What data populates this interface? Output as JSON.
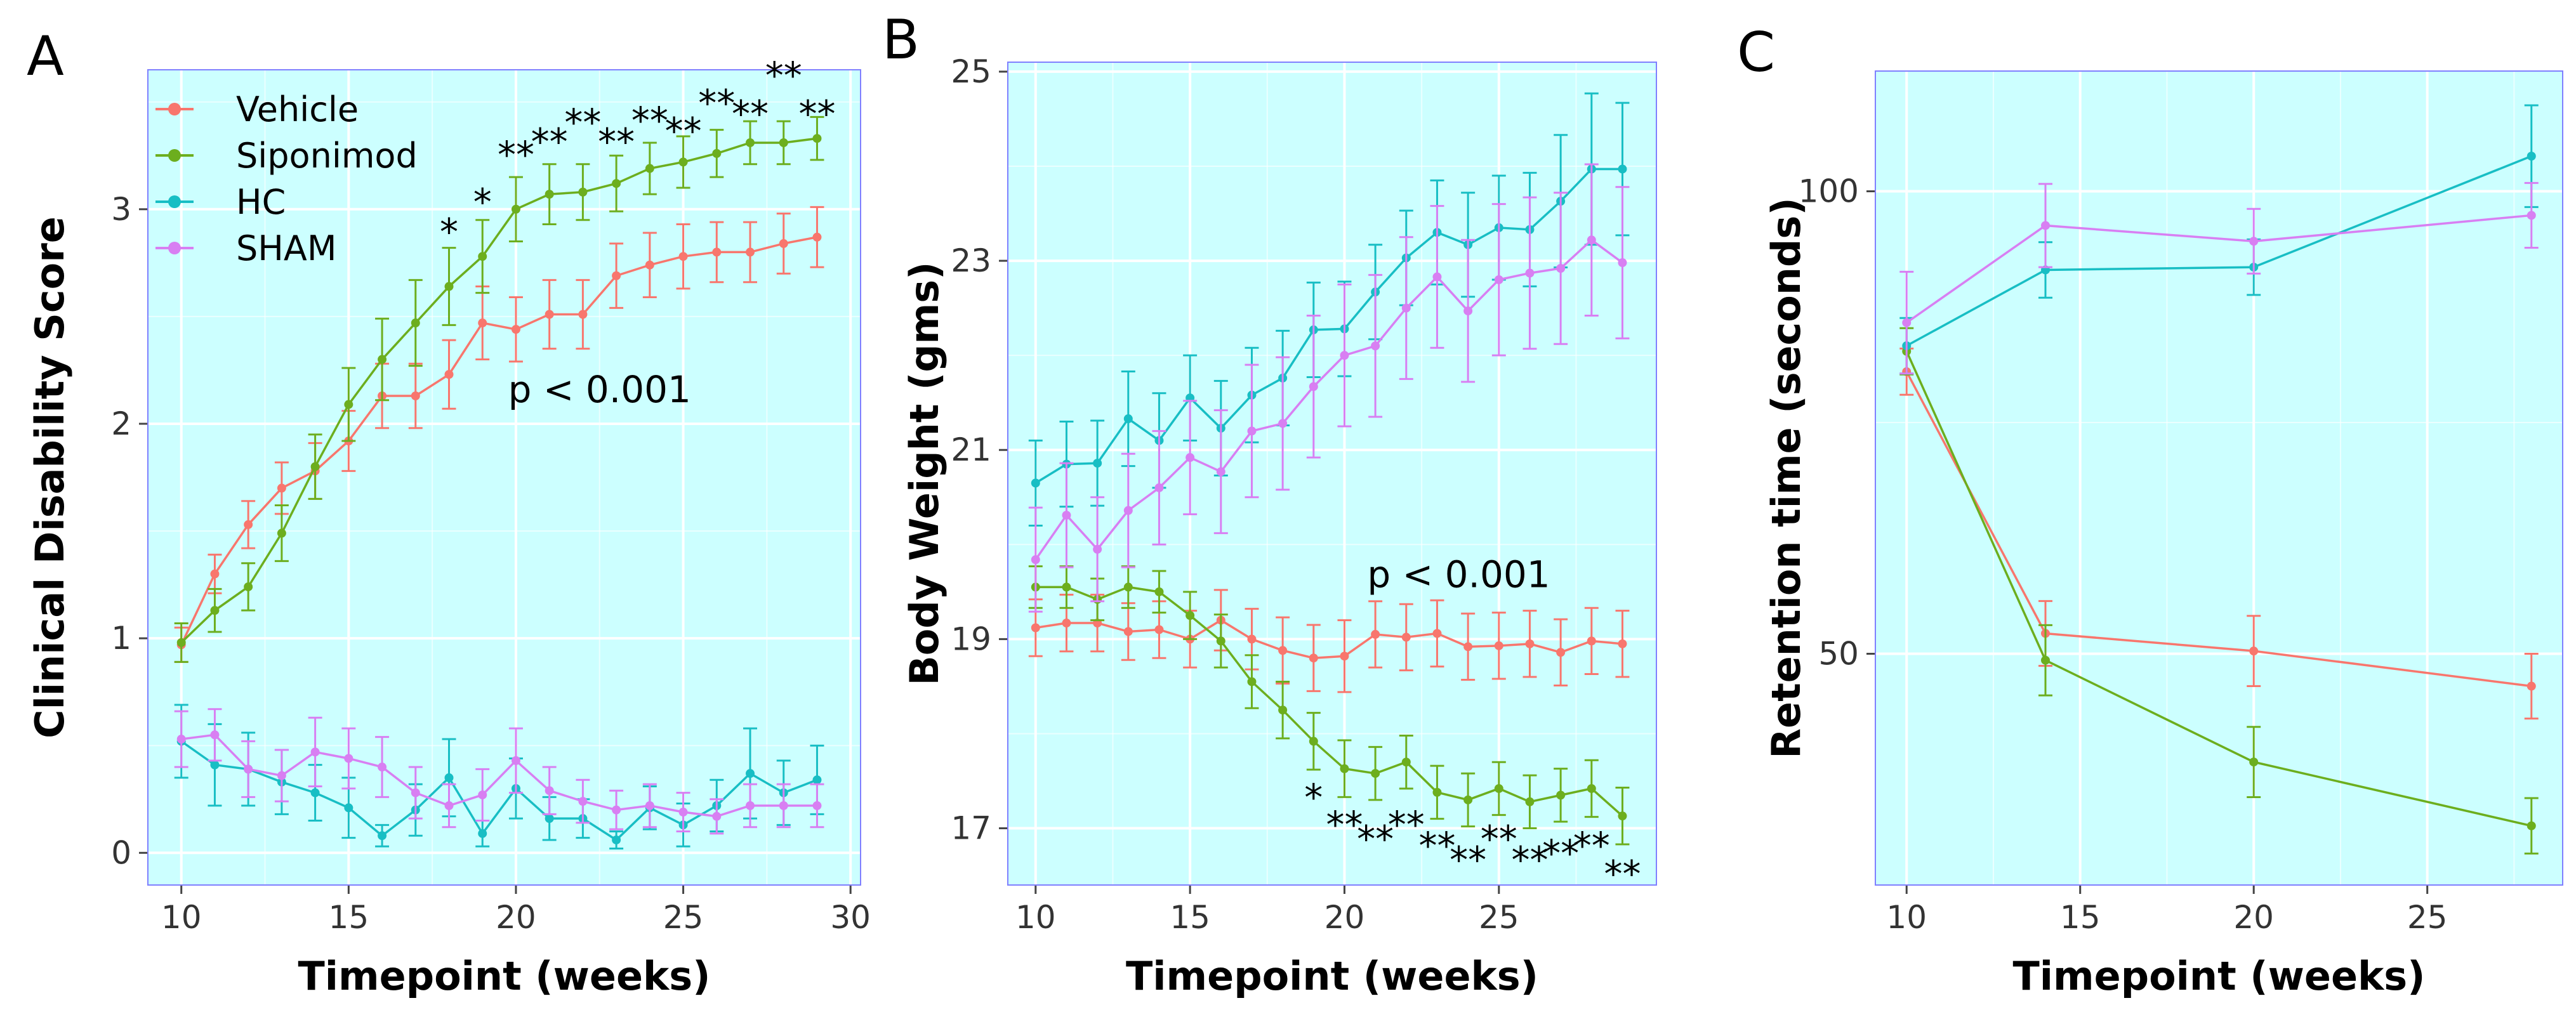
{
  "figure_labels": [
    "A",
    "B",
    "C"
  ],
  "colors": {
    "Vehicle": "#f8766d",
    "Siponimod": "#6cae1e",
    "HC": "#18bec4",
    "SHAM": "#d87ff2",
    "panel_bg": "#ccffff",
    "panel_border": "#7f7fff",
    "grid": "#ffffff"
  },
  "chart_data": [
    {
      "type": "line",
      "panel": "A",
      "xlabel": "Timepoint (weeks)",
      "ylabel": "Clinical Disability Score",
      "xlim": [
        9,
        30.3
      ],
      "ylim": [
        -0.15,
        3.65
      ],
      "xticks": [
        10,
        15,
        20,
        25,
        30
      ],
      "yticks": [
        0,
        1,
        2,
        3
      ],
      "legend": {
        "position": "top-left",
        "entries": [
          "Vehicle",
          "Siponimod",
          "HC",
          "SHAM"
        ]
      },
      "annotation": "p < 0.001",
      "annotation_at": [
        22.5,
        2.1
      ],
      "x": [
        10,
        11,
        12,
        13,
        14,
        15,
        16,
        17,
        18,
        19,
        20,
        21,
        22,
        23,
        24,
        25,
        26,
        27,
        28,
        29
      ],
      "series": [
        {
          "name": "Vehicle",
          "values": [
            0.97,
            1.3,
            1.53,
            1.7,
            1.78,
            1.92,
            2.13,
            2.13,
            2.23,
            2.47,
            2.44,
            2.51,
            2.51,
            2.69,
            2.74,
            2.78,
            2.8,
            2.8,
            2.84,
            2.87
          ],
          "err": [
            0.08,
            0.09,
            0.11,
            0.12,
            0.13,
            0.14,
            0.15,
            0.15,
            0.16,
            0.17,
            0.15,
            0.16,
            0.16,
            0.15,
            0.15,
            0.15,
            0.14,
            0.14,
            0.14,
            0.14
          ]
        },
        {
          "name": "Siponimod",
          "values": [
            0.98,
            1.13,
            1.24,
            1.49,
            1.8,
            2.09,
            2.3,
            2.47,
            2.64,
            2.78,
            3.0,
            3.07,
            3.08,
            3.12,
            3.19,
            3.22,
            3.26,
            3.31,
            3.31,
            3.33
          ],
          "err": [
            0.09,
            0.1,
            0.11,
            0.13,
            0.15,
            0.17,
            0.19,
            0.2,
            0.18,
            0.17,
            0.15,
            0.14,
            0.13,
            0.13,
            0.12,
            0.12,
            0.11,
            0.1,
            0.1,
            0.1
          ]
        },
        {
          "name": "HC",
          "values": [
            0.52,
            0.41,
            0.39,
            0.33,
            0.28,
            0.21,
            0.08,
            0.2,
            0.35,
            0.09,
            0.3,
            0.16,
            0.16,
            0.06,
            0.21,
            0.13,
            0.22,
            0.37,
            0.28,
            0.34
          ],
          "err": [
            0.17,
            0.19,
            0.17,
            0.15,
            0.13,
            0.14,
            0.05,
            0.12,
            0.18,
            0.06,
            0.14,
            0.1,
            0.09,
            0.04,
            0.1,
            0.1,
            0.12,
            0.21,
            0.15,
            0.16
          ]
        },
        {
          "name": "SHAM",
          "values": [
            0.53,
            0.55,
            0.39,
            0.36,
            0.47,
            0.44,
            0.4,
            0.28,
            0.22,
            0.27,
            0.43,
            0.29,
            0.24,
            0.2,
            0.22,
            0.19,
            0.17,
            0.22,
            0.22,
            0.22
          ],
          "err": [
            0.13,
            0.12,
            0.13,
            0.12,
            0.16,
            0.14,
            0.14,
            0.12,
            0.1,
            0.12,
            0.15,
            0.11,
            0.1,
            0.09,
            0.1,
            0.09,
            0.08,
            0.1,
            0.1,
            0.1
          ]
        }
      ],
      "significance": [
        {
          "x": 18,
          "y": 2.9,
          "label": "*"
        },
        {
          "x": 19,
          "y": 3.04,
          "label": "*"
        },
        {
          "x": 20,
          "y": 3.26,
          "label": "**"
        },
        {
          "x": 21,
          "y": 3.32,
          "label": "**"
        },
        {
          "x": 22,
          "y": 3.41,
          "label": "**"
        },
        {
          "x": 23,
          "y": 3.32,
          "label": "**"
        },
        {
          "x": 24,
          "y": 3.42,
          "label": "**"
        },
        {
          "x": 25,
          "y": 3.37,
          "label": "**"
        },
        {
          "x": 26,
          "y": 3.5,
          "label": "**"
        },
        {
          "x": 27,
          "y": 3.45,
          "label": "**"
        },
        {
          "x": 28,
          "y": 3.63,
          "label": "**"
        },
        {
          "x": 29,
          "y": 3.45,
          "label": "**"
        }
      ]
    },
    {
      "type": "line",
      "panel": "B",
      "xlabel": "Timepoint (weeks)",
      "ylabel": "Body Weight (gms)",
      "xlim": [
        9.1,
        30.1
      ],
      "ylim": [
        16.4,
        25.1
      ],
      "xticks": [
        10,
        15,
        20,
        25
      ],
      "yticks": [
        17,
        19,
        21,
        23,
        25
      ],
      "annotation": "p < 0.001",
      "annotation_at": [
        23.7,
        19.55
      ],
      "x": [
        10,
        11,
        12,
        13,
        14,
        15,
        16,
        17,
        18,
        19,
        20,
        21,
        22,
        23,
        24,
        25,
        26,
        27,
        28,
        29
      ],
      "series": [
        {
          "name": "Vehicle",
          "values": [
            19.12,
            19.17,
            19.17,
            19.08,
            19.1,
            19.0,
            19.2,
            19.0,
            18.88,
            18.8,
            18.82,
            19.05,
            19.02,
            19.06,
            18.92,
            18.93,
            18.95,
            18.86,
            18.98,
            18.95
          ],
          "err": [
            0.3,
            0.3,
            0.3,
            0.3,
            0.3,
            0.3,
            0.32,
            0.32,
            0.35,
            0.35,
            0.38,
            0.35,
            0.35,
            0.35,
            0.35,
            0.35,
            0.35,
            0.35,
            0.35,
            0.35
          ]
        },
        {
          "name": "Siponimod",
          "values": [
            19.55,
            19.55,
            19.42,
            19.55,
            19.5,
            19.25,
            18.98,
            18.55,
            18.25,
            17.92,
            17.63,
            17.58,
            17.7,
            17.38,
            17.3,
            17.42,
            17.28,
            17.35,
            17.42,
            17.13
          ],
          "err": [
            0.22,
            0.22,
            0.22,
            0.22,
            0.22,
            0.25,
            0.28,
            0.28,
            0.3,
            0.3,
            0.3,
            0.28,
            0.28,
            0.28,
            0.28,
            0.28,
            0.28,
            0.28,
            0.3,
            0.3
          ]
        },
        {
          "name": "HC",
          "values": [
            20.65,
            20.85,
            20.86,
            21.33,
            21.1,
            21.55,
            21.23,
            21.58,
            21.76,
            22.27,
            22.28,
            22.67,
            23.03,
            23.3,
            23.17,
            23.35,
            23.33,
            23.63,
            23.97,
            23.97
          ],
          "err": [
            0.45,
            0.45,
            0.45,
            0.5,
            0.5,
            0.45,
            0.5,
            0.5,
            0.5,
            0.5,
            0.5,
            0.5,
            0.5,
            0.55,
            0.55,
            0.55,
            0.6,
            0.7,
            0.8,
            0.7
          ]
        },
        {
          "name": "SHAM",
          "values": [
            19.84,
            20.31,
            19.95,
            20.36,
            20.6,
            20.92,
            20.77,
            21.2,
            21.28,
            21.67,
            22.0,
            22.1,
            22.5,
            22.83,
            22.47,
            22.8,
            22.87,
            22.92,
            23.22,
            22.98
          ],
          "err": [
            0.55,
            0.55,
            0.55,
            0.6,
            0.6,
            0.6,
            0.65,
            0.7,
            0.7,
            0.75,
            0.75,
            0.75,
            0.75,
            0.75,
            0.75,
            0.8,
            0.8,
            0.8,
            0.8,
            0.8
          ]
        }
      ],
      "significance": [
        {
          "x": 19,
          "y": 17.34,
          "label": "*"
        },
        {
          "x": 20,
          "y": 17.05,
          "label": "**"
        },
        {
          "x": 21,
          "y": 16.9,
          "label": "**"
        },
        {
          "x": 22,
          "y": 17.05,
          "label": "**"
        },
        {
          "x": 23,
          "y": 16.83,
          "label": "**"
        },
        {
          "x": 24,
          "y": 16.68,
          "label": "**"
        },
        {
          "x": 25,
          "y": 16.9,
          "label": "**"
        },
        {
          "x": 26,
          "y": 16.68,
          "label": "**"
        },
        {
          "x": 27,
          "y": 16.75,
          "label": "**"
        },
        {
          "x": 28,
          "y": 16.83,
          "label": "**"
        },
        {
          "x": 29,
          "y": 16.53,
          "label": "**"
        }
      ]
    },
    {
      "type": "line",
      "panel": "C",
      "xlabel": "Timepoint (weeks)",
      "ylabel": "Retention time (seconds)",
      "xlim": [
        9.1,
        28.9
      ],
      "ylim": [
        25,
        113
      ],
      "xticks": [
        10,
        15,
        20,
        25
      ],
      "yticks": [
        50,
        100
      ],
      "x": [
        10,
        14,
        20,
        28
      ],
      "series": [
        {
          "name": "Vehicle",
          "values": [
            80.5,
            52.2,
            50.3,
            46.5
          ],
          "err": [
            2.5,
            3.5,
            3.8,
            3.5
          ]
        },
        {
          "name": "Siponimod",
          "values": [
            82.7,
            49.3,
            38.3,
            31.4
          ],
          "err": [
            2.5,
            3.8,
            3.8,
            3.0
          ]
        },
        {
          "name": "HC",
          "values": [
            83.3,
            91.5,
            91.8,
            103.8
          ],
          "err": [
            3.0,
            3.0,
            3.0,
            5.5
          ]
        },
        {
          "name": "SHAM",
          "values": [
            85.8,
            96.3,
            94.6,
            97.4
          ],
          "err": [
            5.5,
            4.5,
            3.5,
            3.5
          ]
        }
      ]
    }
  ]
}
